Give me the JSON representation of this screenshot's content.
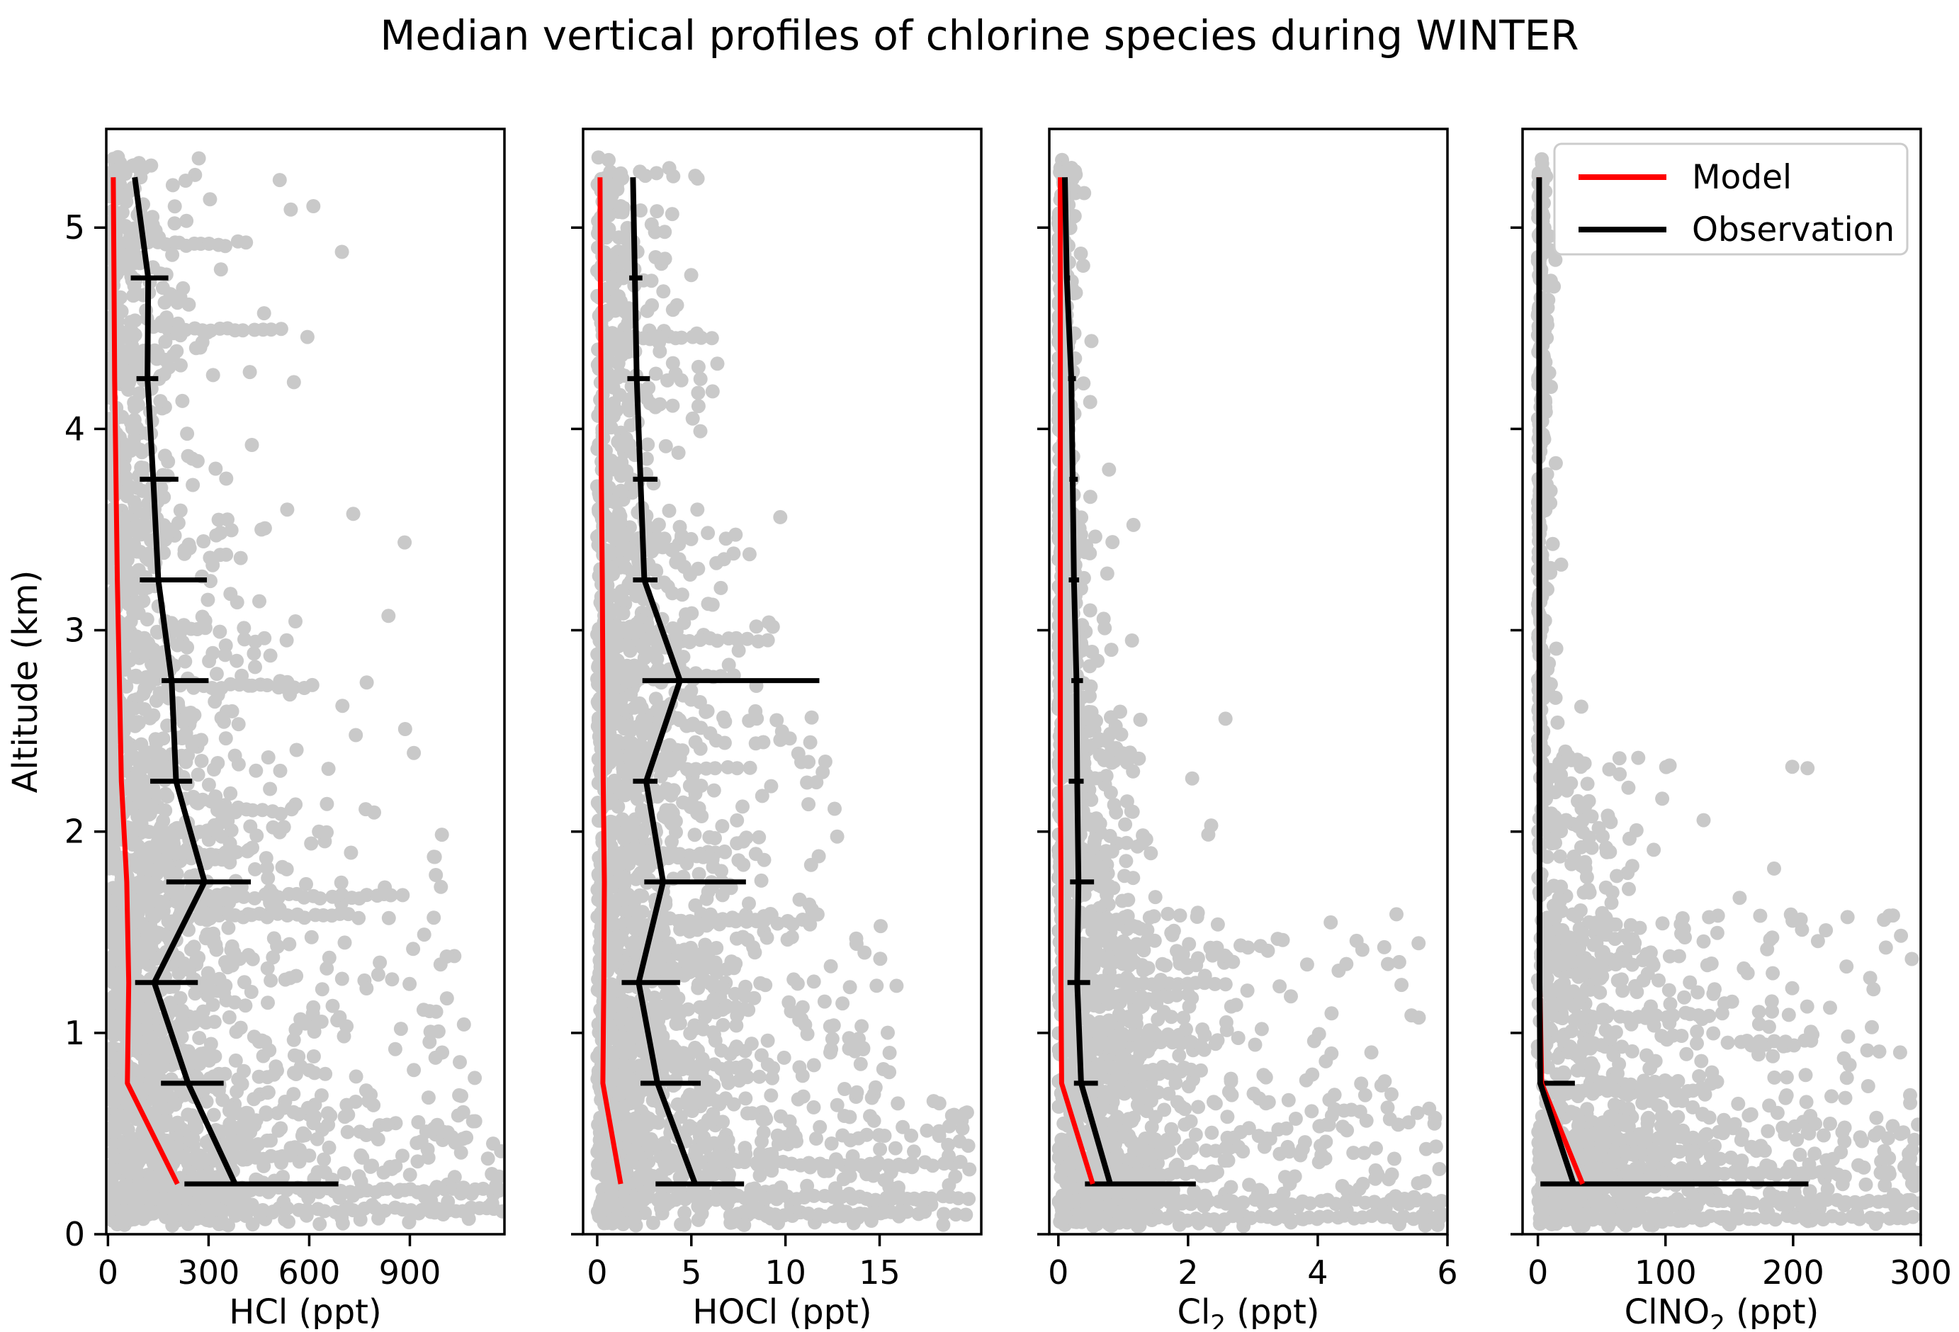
{
  "chart_data": {
    "type": "scatter",
    "title": "Median vertical profiles of chlorine species during WINTER",
    "ylabel": "Altitude (km)",
    "ylim": [
      0,
      5.49
    ],
    "yticks": [
      0,
      1,
      2,
      3,
      4,
      5
    ],
    "grid": false,
    "legend": {
      "position": "upper-left-of-fourth-panel",
      "entries": [
        {
          "label": "Model",
          "color": "#ff0000"
        },
        {
          "label": "Observation",
          "color": "#000000"
        }
      ]
    },
    "scatter_color": "#c9c9c9",
    "altitudes_km": [
      0.25,
      0.75,
      1.25,
      1.75,
      2.25,
      2.75,
      3.25,
      3.75,
      4.25,
      4.75,
      5.25
    ],
    "panels": [
      {
        "id": "hcl",
        "xlabel_base": "HCl",
        "xlabel_sub": "",
        "xlabel_unit": " (ppt)",
        "xlim": [
          -5,
          1182
        ],
        "xticks": [
          0,
          300,
          600,
          900
        ],
        "observation_median": [
          379,
          239,
          138,
          288,
          203,
          190,
          150,
          135,
          118,
          120,
          80
        ],
        "observation_lo": [
          228,
          158,
          81,
          174,
          126,
          160,
          95,
          95,
          85,
          68,
          null
        ],
        "observation_hi": [
          687,
          345,
          268,
          426,
          251,
          300,
          295,
          210,
          150,
          180,
          null
        ],
        "model": [
          207,
          58,
          62,
          56,
          40,
          34,
          28,
          24,
          20,
          18,
          16
        ],
        "scatter": {
          "seed": 101,
          "bands": [
            {
              "alt": [
                0.04,
                0.7
              ],
              "n": 500,
              "scale": 260,
              "umax": 1180,
              "ufrac": 0.3
            },
            {
              "alt": [
                0.7,
                1.6
              ],
              "n": 520,
              "scale": 200,
              "umax": 1100,
              "ufrac": 0.12
            },
            {
              "alt": [
                1.6,
                2.6
              ],
              "n": 380,
              "scale": 170,
              "umax": 1000,
              "ufrac": 0.08
            },
            {
              "alt": [
                2.6,
                3.6
              ],
              "n": 300,
              "scale": 130,
              "umax": 900,
              "ufrac": 0.05
            },
            {
              "alt": [
                3.6,
                5.35
              ],
              "n": 330,
              "scale": 90,
              "umax": 700,
              "ufrac": 0.03
            }
          ],
          "streaks": [
            {
              "alt": 4.92,
              "x0": 120,
              "x1": 430
            },
            {
              "alt": 4.5,
              "x0": 140,
              "x1": 520
            },
            {
              "alt": 2.72,
              "x0": 220,
              "x1": 610
            },
            {
              "alt": 1.68,
              "x0": 200,
              "x1": 900
            },
            {
              "alt": 1.58,
              "x0": 240,
              "x1": 770
            },
            {
              "alt": 0.22,
              "x0": 20,
              "x1": 1180
            },
            {
              "alt": 0.12,
              "x0": 60,
              "x1": 1180
            },
            {
              "alt": 0.38,
              "x0": 100,
              "x1": 560
            },
            {
              "alt": 3.0,
              "x0": 150,
              "x1": 310
            },
            {
              "alt": 2.1,
              "x0": 350,
              "x1": 560
            }
          ],
          "random_streaks": {
            "n": 14,
            "alt": [
              0.1,
              2.2
            ],
            "len": [
              90,
              350
            ],
            "scale": 250
          }
        }
      },
      {
        "id": "hocl",
        "xlabel_base": "HOCl",
        "xlabel_sub": "",
        "xlabel_unit": " (ppt)",
        "xlim": [
          -0.75,
          20.4
        ],
        "xticks": [
          0,
          5,
          10,
          15
        ],
        "observation_median": [
          5.2,
          3.2,
          2.2,
          3.5,
          2.6,
          4.4,
          2.5,
          2.3,
          2.1,
          2.0,
          1.9
        ],
        "observation_lo": [
          3.1,
          2.3,
          1.3,
          2.5,
          1.9,
          2.4,
          1.9,
          1.9,
          1.6,
          1.7,
          null
        ],
        "observation_hi": [
          7.8,
          5.5,
          4.4,
          7.9,
          3.2,
          11.8,
          3.2,
          3.2,
          2.8,
          2.4,
          null
        ],
        "model": [
          1.25,
          0.3,
          0.35,
          0.38,
          0.32,
          0.3,
          0.27,
          0.22,
          0.2,
          0.17,
          0.15
        ],
        "scatter": {
          "seed": 202,
          "bands": [
            {
              "alt": [
                0.04,
                0.7
              ],
              "n": 480,
              "scale": 4.2,
              "umax": 19.8,
              "ufrac": 0.25
            },
            {
              "alt": [
                0.7,
                1.6
              ],
              "n": 500,
              "scale": 3.6,
              "umax": 16,
              "ufrac": 0.15
            },
            {
              "alt": [
                1.6,
                2.6
              ],
              "n": 360,
              "scale": 2.8,
              "umax": 13,
              "ufrac": 0.08
            },
            {
              "alt": [
                2.6,
                3.6
              ],
              "n": 280,
              "scale": 2.2,
              "umax": 10,
              "ufrac": 0.05
            },
            {
              "alt": [
                3.6,
                5.35
              ],
              "n": 300,
              "scale": 1.4,
              "umax": 7,
              "ufrac": 0.03
            }
          ],
          "streaks": [
            {
              "alt": 4.45,
              "x0": 1.5,
              "x1": 6.3
            },
            {
              "alt": 2.95,
              "x0": 1.8,
              "x1": 9.3
            },
            {
              "alt": 2.78,
              "x0": 2.2,
              "x1": 7.2
            },
            {
              "alt": 1.55,
              "x0": 4.5,
              "x1": 11.6
            },
            {
              "alt": 0.35,
              "x0": 3.5,
              "x1": 19.5
            },
            {
              "alt": 0.18,
              "x0": 1.0,
              "x1": 19.8
            },
            {
              "alt": 0.1,
              "x0": 7.0,
              "x1": 18.0
            },
            {
              "alt": 1.12,
              "x0": 2.0,
              "x1": 8.0
            },
            {
              "alt": 3.4,
              "x0": 1.5,
              "x1": 4.0
            }
          ],
          "random_streaks": {
            "n": 12,
            "alt": [
              0.1,
              2.4
            ],
            "len": [
              2,
              7
            ],
            "scale": 5
          }
        }
      },
      {
        "id": "cl2",
        "xlabel_base": "Cl",
        "xlabel_sub": "2",
        "xlabel_unit": " (ppt)",
        "xlim": [
          -0.14,
          6
        ],
        "xticks": [
          0,
          2,
          4,
          6
        ],
        "observation_median": [
          0.8,
          0.35,
          0.29,
          0.31,
          0.29,
          0.28,
          0.24,
          0.22,
          0.2,
          0.13,
          0.1
        ],
        "observation_lo": [
          0.41,
          0.24,
          0.14,
          0.18,
          0.16,
          0.2,
          0.16,
          0.17,
          0.15,
          0.09,
          null
        ],
        "observation_hi": [
          2.12,
          0.61,
          0.49,
          0.55,
          0.39,
          0.38,
          0.32,
          0.3,
          0.27,
          0.18,
          null
        ],
        "model": [
          0.53,
          0.05,
          0.04,
          0.04,
          0.03,
          0.03,
          0.03,
          0.03,
          0.03,
          0.03,
          0.03
        ],
        "scatter": {
          "seed": 303,
          "bands": [
            {
              "alt": [
                0.04,
                0.7
              ],
              "n": 470,
              "scale": 1.1,
              "umax": 5.95,
              "ufrac": 0.3
            },
            {
              "alt": [
                0.7,
                1.6
              ],
              "n": 430,
              "scale": 0.9,
              "umax": 5.6,
              "ufrac": 0.12
            },
            {
              "alt": [
                1.6,
                2.6
              ],
              "n": 300,
              "scale": 0.35,
              "umax": 2.6,
              "ufrac": 0.04
            },
            {
              "alt": [
                2.6,
                3.6
              ],
              "n": 230,
              "scale": 0.16,
              "umax": 1.2,
              "ufrac": 0.02
            },
            {
              "alt": [
                3.6,
                5.35
              ],
              "n": 240,
              "scale": 0.09,
              "umax": 0.9,
              "ufrac": 0.01
            }
          ],
          "streaks": [
            {
              "alt": 0.16,
              "x0": 0.05,
              "x1": 5.95
            },
            {
              "alt": 0.08,
              "x0": 0.05,
              "x1": 5.95
            },
            {
              "alt": 0.3,
              "x0": 0.1,
              "x1": 2.1
            },
            {
              "alt": 1.45,
              "x0": 0.2,
              "x1": 1.6
            },
            {
              "alt": 0.95,
              "x0": 0.3,
              "x1": 2.2
            },
            {
              "alt": 1.25,
              "x0": 1.6,
              "x1": 2.6
            }
          ],
          "random_streaks": {
            "n": 10,
            "alt": [
              0.1,
              1.6
            ],
            "len": [
              0.5,
              2
            ],
            "scale": 1.2
          }
        }
      },
      {
        "id": "clno2",
        "xlabel_base": "ClNO",
        "xlabel_sub": "2",
        "xlabel_unit": " (ppt)",
        "xlim": [
          -12,
          300
        ],
        "xticks": [
          0,
          100,
          200,
          300
        ],
        "observation_median": [
          28,
          1.8,
          1.3,
          1.3,
          1.2,
          1.2,
          1.1,
          1.1,
          1.0,
          1.0,
          1.0
        ],
        "observation_lo": [
          2,
          1,
          null,
          null,
          null,
          null,
          null,
          null,
          null,
          null,
          null
        ],
        "observation_hi": [
          212,
          29,
          null,
          null,
          null,
          null,
          null,
          null,
          null,
          null,
          null
        ],
        "model": [
          35,
          3,
          1.5,
          1.2,
          1.0,
          1.0,
          1.0,
          1.0,
          1.0,
          1.0,
          1.0
        ],
        "scatter": {
          "seed": 404,
          "bands": [
            {
              "alt": [
                0.04,
                0.6
              ],
              "n": 520,
              "scale": 55,
              "umax": 298,
              "ufrac": 0.45
            },
            {
              "alt": [
                0.6,
                1.6
              ],
              "n": 380,
              "scale": 48,
              "umax": 298,
              "ufrac": 0.18
            },
            {
              "alt": [
                1.6,
                2.4
              ],
              "n": 120,
              "scale": 28,
              "umax": 280,
              "ufrac": 0.06
            },
            {
              "alt": [
                2.4,
                5.35
              ],
              "n": 230,
              "scale": 3.5,
              "umax": 40,
              "ufrac": 0.01
            }
          ],
          "streaks": [
            {
              "alt": 0.16,
              "x0": 1,
              "x1": 298
            },
            {
              "alt": 0.08,
              "x0": 1,
              "x1": 298
            },
            {
              "alt": 0.3,
              "x0": 5,
              "x1": 230
            },
            {
              "alt": 0.95,
              "x0": 150,
              "x1": 218
            },
            {
              "alt": 0.75,
              "x0": 40,
              "x1": 110
            },
            {
              "alt": 1.35,
              "x0": 20,
              "x1": 90
            }
          ],
          "random_streaks": {
            "n": 8,
            "alt": [
              0.1,
              1.4
            ],
            "len": [
              30,
              120
            ],
            "scale": 80
          }
        }
      }
    ]
  }
}
